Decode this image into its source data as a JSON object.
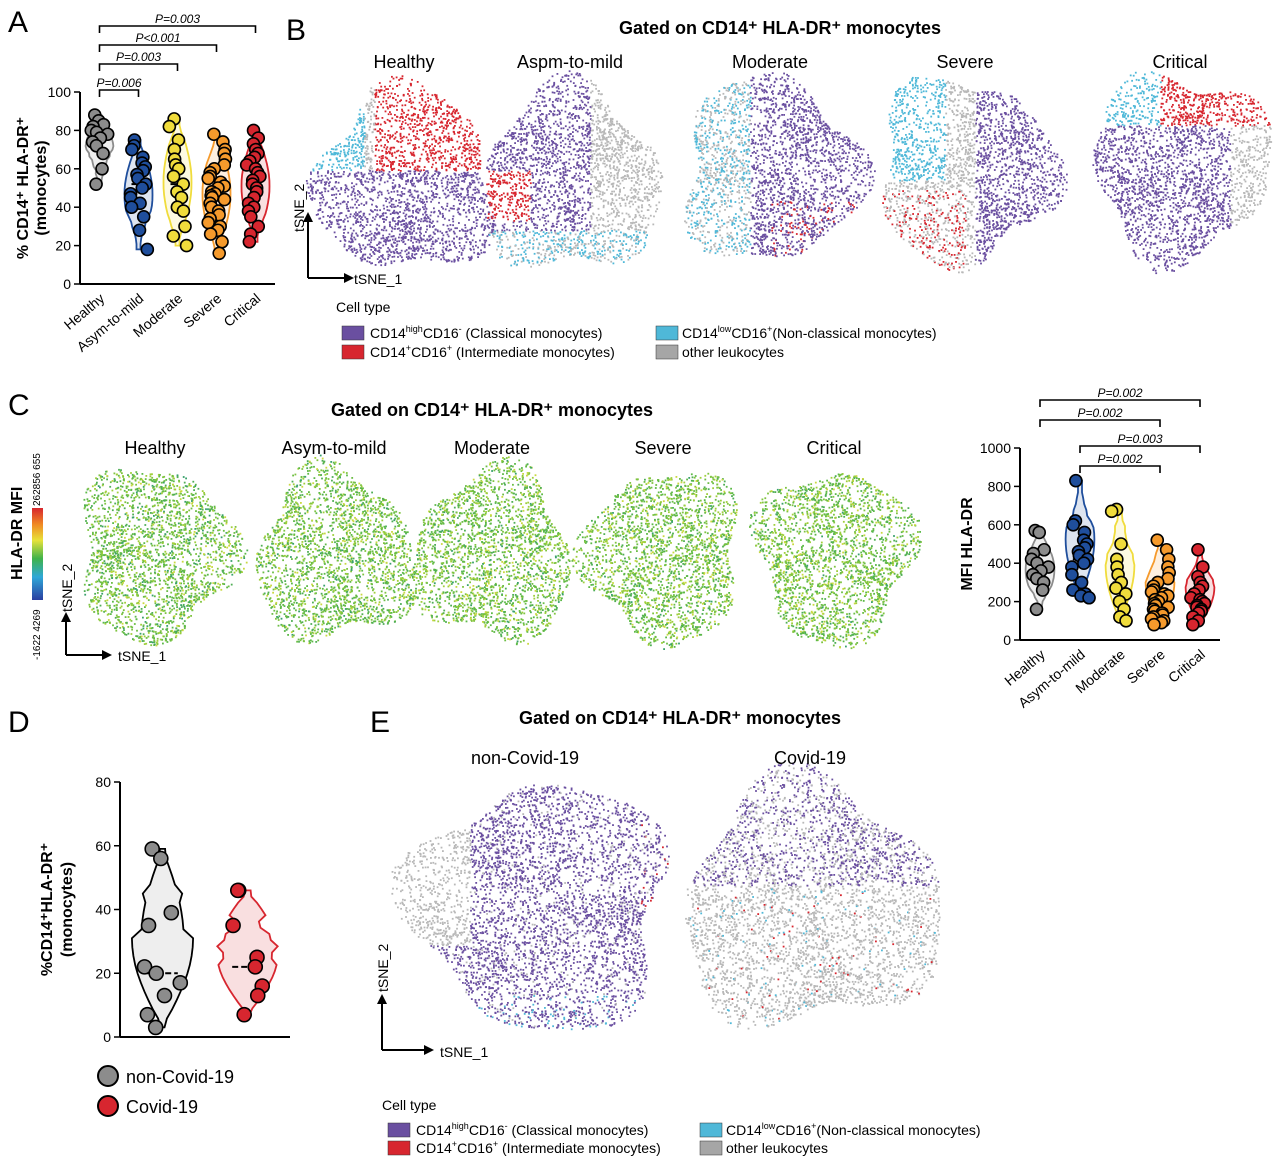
{
  "panels": {
    "A": "A",
    "B": "B",
    "C": "C",
    "D": "D",
    "E": "E"
  },
  "titles": {
    "B": "Gated on CD14⁺ HLA-DR⁺ monocytes",
    "C": "Gated on CD14⁺ HLA-DR⁺ monocytes",
    "E": "Gated on CD14⁺ HLA-DR⁺ monocytes"
  },
  "tsne_B": {
    "conditions": [
      "Healthy",
      "Aspm-to-mild",
      "Moderate",
      "Severe",
      "Critical"
    ],
    "axis_x": "tSNE_1",
    "axis_y": "tSNE_2"
  },
  "tsne_C": {
    "conditions": [
      "Healthy",
      "Asym-to-mild",
      "Moderate",
      "Severe",
      "Critical"
    ],
    "axis_x": "tSNE_1",
    "axis_y": "tSNE_2",
    "colorbar_label": "HLA-DR MFI",
    "colorbar_min": "-1622 4269",
    "colorbar_max": "262856 655"
  },
  "tsne_E": {
    "conditions": [
      "non-Covid-19",
      "Covid-19"
    ],
    "axis_x": "tSNE_1",
    "axis_y": "tSNE_2"
  },
  "legend_celltype": {
    "title": "Cell type",
    "items": [
      {
        "label": "CD14highCD16- (Classical monocytes)",
        "color": "#6a4fa0"
      },
      {
        "label": "CD14+CD16+ (Intermediate monocytes)",
        "color": "#d7262f"
      },
      {
        "label": "CD14lowCD16+(Non-classical monocytes)",
        "color": "#4fb8d8"
      },
      {
        "label": "other leukocytes",
        "color": "#a6a6a6"
      }
    ]
  },
  "colors": {
    "healthy": "#8c8c8c",
    "asym": "#1f4e9c",
    "moderate": "#f0dc3c",
    "severe": "#f59a2c",
    "critical": "#d7262f",
    "noncovid": "#8c8c8c",
    "covid": "#d7262f"
  },
  "chart_data": [
    {
      "id": "A",
      "type": "scatter",
      "ylabel": "% CD14⁺ HLA-DR⁺ (monocytes)",
      "ylim": [
        0,
        100
      ],
      "yticks": [
        0,
        20,
        40,
        60,
        80,
        100
      ],
      "categories": [
        "Healthy",
        "Asym-to-mild",
        "Moderate",
        "Severe",
        "Critical"
      ],
      "series": [
        {
          "name": "Healthy",
          "values": [
            88,
            85,
            83,
            82,
            80,
            79,
            78,
            76,
            74,
            72,
            68,
            60,
            52
          ]
        },
        {
          "name": "Asym-to-mild",
          "values": [
            75,
            72,
            70,
            66,
            63,
            61,
            59,
            57,
            55,
            52,
            50,
            47,
            45,
            42,
            40,
            35,
            28,
            18
          ]
        },
        {
          "name": "Moderate",
          "values": [
            86,
            82,
            75,
            70,
            65,
            62,
            60,
            56,
            52,
            48,
            45,
            40,
            38,
            30,
            25,
            20
          ]
        },
        {
          "name": "Severe",
          "values": [
            78,
            74,
            70,
            68,
            65,
            62,
            60,
            58,
            56,
            55,
            53,
            51,
            50,
            48,
            47,
            46,
            45,
            44,
            42,
            40,
            38,
            36,
            34,
            32,
            30,
            28,
            26,
            22,
            16
          ]
        },
        {
          "name": "Critical",
          "values": [
            80,
            76,
            73,
            70,
            68,
            66,
            64,
            62,
            60,
            58,
            56,
            54,
            52,
            50,
            48,
            45,
            42,
            40,
            38,
            35,
            30,
            26,
            22
          ]
        }
      ],
      "pvalues": [
        {
          "from": 0,
          "to": 1,
          "label": "P=0.006"
        },
        {
          "from": 0,
          "to": 2,
          "label": "P=0.003"
        },
        {
          "from": 0,
          "to": 3,
          "label": "P<0.001"
        },
        {
          "from": 0,
          "to": 4,
          "label": "P=0.003"
        }
      ]
    },
    {
      "id": "C",
      "type": "scatter",
      "ylabel": "MFI HLA-DR",
      "ylim": [
        0,
        1000
      ],
      "yticks": [
        0,
        200,
        400,
        600,
        800,
        1000
      ],
      "categories": [
        "Healthy",
        "Asym-to-mild",
        "Moderate",
        "Severe",
        "Critical"
      ],
      "series": [
        {
          "name": "Healthy",
          "values": [
            570,
            560,
            470,
            450,
            420,
            400,
            380,
            360,
            340,
            320,
            300,
            260,
            160
          ]
        },
        {
          "name": "Asym-to-mild",
          "values": [
            830,
            620,
            600,
            560,
            520,
            500,
            480,
            460,
            440,
            420,
            400,
            380,
            340,
            300,
            260,
            240,
            230,
            220
          ]
        },
        {
          "name": "Moderate",
          "values": [
            680,
            670,
            500,
            420,
            380,
            340,
            300,
            270,
            240,
            200,
            160,
            120,
            100
          ]
        },
        {
          "name": "Severe",
          "values": [
            520,
            470,
            420,
            380,
            350,
            320,
            300,
            280,
            260,
            250,
            240,
            230,
            220,
            210,
            200,
            190,
            180,
            170,
            160,
            150,
            140,
            130,
            120,
            110,
            100,
            90,
            80
          ]
        },
        {
          "name": "Critical",
          "values": [
            470,
            380,
            330,
            300,
            280,
            260,
            240,
            220,
            210,
            200,
            190,
            180,
            170,
            160,
            150,
            140,
            120,
            100,
            80
          ]
        }
      ],
      "pvalues": [
        {
          "from": 0,
          "to": 4,
          "label": "P=0.002"
        },
        {
          "from": 0,
          "to": 3,
          "label": "P=0.002"
        },
        {
          "from": 1,
          "to": 4,
          "label": "P=0.003"
        },
        {
          "from": 1,
          "to": 3,
          "label": "P=0.002"
        }
      ]
    },
    {
      "id": "D",
      "type": "scatter",
      "ylabel": "%CD14⁺HLA-DR⁺ (monocytes)",
      "ylim": [
        0,
        80
      ],
      "yticks": [
        0,
        20,
        40,
        60,
        80
      ],
      "categories": [
        "non-Covid-19",
        "Covid-19"
      ],
      "series": [
        {
          "name": "non-Covid-19",
          "values": [
            59,
            56,
            39,
            35,
            22,
            20,
            17,
            13,
            7,
            3
          ]
        },
        {
          "name": "Covid-19",
          "values": [
            46,
            46,
            35,
            25,
            22,
            16,
            13,
            7
          ]
        }
      ]
    }
  ]
}
